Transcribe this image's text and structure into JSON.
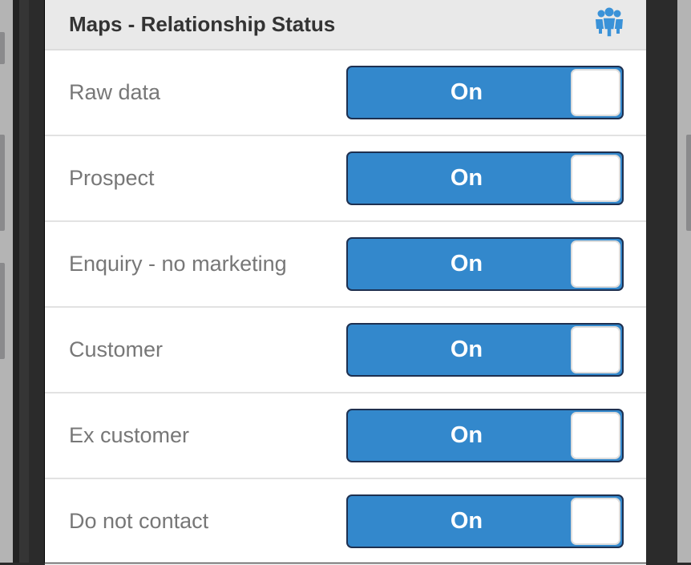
{
  "header": {
    "title": "Maps - Relationship Status",
    "icon": "users-group-icon",
    "accent": "#3388cc"
  },
  "rows": [
    {
      "label": "Raw data",
      "state": "On"
    },
    {
      "label": "Prospect",
      "state": "On"
    },
    {
      "label": "Enquiry - no marketing",
      "state": "On"
    },
    {
      "label": "Customer",
      "state": "On"
    },
    {
      "label": "Ex customer",
      "state": "On"
    },
    {
      "label": "Do not contact",
      "state": "On"
    }
  ]
}
